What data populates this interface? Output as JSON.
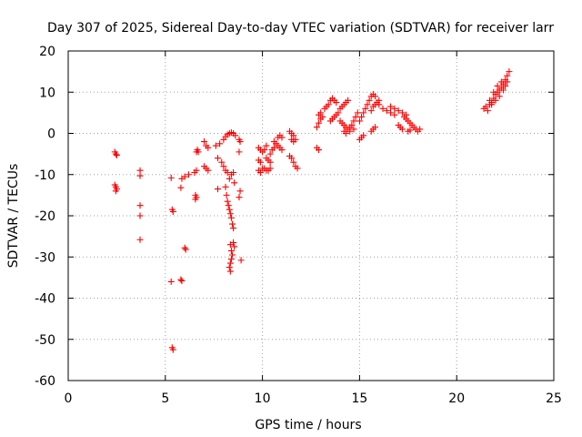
{
  "chart_data": {
    "type": "scatter",
    "title": "Day 307 of 2025, Sidereal Day-to-day VTEC variation (SDTVAR) for receiver larr",
    "xlabel": "GPS time / hours",
    "ylabel": "SDTVAR / TECUs",
    "xlim": [
      0,
      25
    ],
    "ylim": [
      -60,
      20
    ],
    "xticks": [
      0,
      5,
      10,
      15,
      20,
      25
    ],
    "yticks": [
      -60,
      -50,
      -40,
      -30,
      -20,
      -10,
      0,
      10,
      20
    ],
    "xtick_labels": [
      "0",
      "5",
      "10",
      "15",
      "20",
      "25"
    ],
    "ytick_labels": [
      "-60",
      "-50",
      "-40",
      "-30",
      "-20",
      "-10",
      "0",
      "10",
      "20"
    ],
    "grid": true,
    "marker": "+",
    "color": "#ff0000",
    "series": [
      {
        "name": "SDTVAR",
        "points": [
          [
            2.4,
            -4.5
          ],
          [
            2.45,
            -5.0
          ],
          [
            2.5,
            -5.3
          ],
          [
            2.4,
            -12.5
          ],
          [
            2.45,
            -13.0
          ],
          [
            2.5,
            -13.5
          ],
          [
            2.45,
            -14.0
          ],
          [
            3.7,
            -9.0
          ],
          [
            3.7,
            -10.3
          ],
          [
            3.7,
            -17.5
          ],
          [
            3.7,
            -20.0
          ],
          [
            3.7,
            -25.8
          ],
          [
            5.3,
            -10.8
          ],
          [
            5.35,
            -18.5
          ],
          [
            5.4,
            -19.0
          ],
          [
            5.3,
            -36.0
          ],
          [
            5.35,
            -52.0
          ],
          [
            5.4,
            -52.5
          ],
          [
            5.8,
            -13.2
          ],
          [
            5.8,
            -35.5
          ],
          [
            5.85,
            -35.8
          ],
          [
            5.85,
            -11.0
          ],
          [
            6.0,
            -10.5
          ],
          [
            6.2,
            -10.0
          ],
          [
            6.0,
            -27.8
          ],
          [
            6.05,
            -28.2
          ],
          [
            6.5,
            -9.5
          ],
          [
            6.6,
            -9.0
          ],
          [
            6.55,
            -15.0
          ],
          [
            6.6,
            -15.5
          ],
          [
            6.55,
            -16.0
          ],
          [
            6.6,
            -4.5
          ],
          [
            6.65,
            -4.0
          ],
          [
            6.7,
            -4.5
          ],
          [
            7.0,
            -2.0
          ],
          [
            7.1,
            -3.0
          ],
          [
            7.2,
            -3.5
          ],
          [
            7.0,
            -8.0
          ],
          [
            7.1,
            -8.5
          ],
          [
            7.2,
            -9.0
          ],
          [
            7.7,
            -13.5
          ],
          [
            7.7,
            -6.0
          ],
          [
            7.6,
            -3.0
          ],
          [
            7.8,
            -2.5
          ],
          [
            8.0,
            -1.5
          ],
          [
            8.1,
            -0.8
          ],
          [
            8.2,
            -0.3
          ],
          [
            8.3,
            0.0
          ],
          [
            8.4,
            0.2
          ],
          [
            8.5,
            0.0
          ],
          [
            8.6,
            -0.5
          ],
          [
            7.9,
            -7.0
          ],
          [
            8.0,
            -8.0
          ],
          [
            8.1,
            -9.0
          ],
          [
            8.2,
            -9.5
          ],
          [
            8.3,
            -11.0
          ],
          [
            8.4,
            -10.0
          ],
          [
            8.5,
            -9.5
          ],
          [
            8.55,
            -12.0
          ],
          [
            8.1,
            -13.0
          ],
          [
            8.15,
            -15.0
          ],
          [
            8.2,
            -16.5
          ],
          [
            8.25,
            -17.5
          ],
          [
            8.3,
            -18.5
          ],
          [
            8.35,
            -19.5
          ],
          [
            8.4,
            -20.5
          ],
          [
            8.45,
            -22.0
          ],
          [
            8.5,
            -23.0
          ],
          [
            8.35,
            -27.0
          ],
          [
            8.4,
            -28.5
          ],
          [
            8.45,
            -29.5
          ],
          [
            8.4,
            -30.5
          ],
          [
            8.35,
            -31.5
          ],
          [
            8.3,
            -32.5
          ],
          [
            8.35,
            -33.5
          ],
          [
            8.5,
            -26.5
          ],
          [
            8.55,
            -27.5
          ],
          [
            8.8,
            -1.5
          ],
          [
            8.85,
            -2.0
          ],
          [
            8.8,
            -4.5
          ],
          [
            8.85,
            -14.0
          ],
          [
            8.8,
            -15.5
          ],
          [
            8.9,
            -30.8
          ],
          [
            9.8,
            -3.5
          ],
          [
            9.9,
            -4.0
          ],
          [
            9.8,
            -6.5
          ],
          [
            9.9,
            -7.0
          ],
          [
            9.8,
            -9.0
          ],
          [
            9.9,
            -9.5
          ],
          [
            10.0,
            -8.5
          ],
          [
            10.0,
            -4.5
          ],
          [
            10.1,
            -4.0
          ],
          [
            10.2,
            -3.0
          ],
          [
            10.1,
            -8.5
          ],
          [
            10.2,
            -9.0
          ],
          [
            10.3,
            -9.0
          ],
          [
            10.4,
            -8.5
          ],
          [
            10.2,
            -6.0
          ],
          [
            10.3,
            -6.5
          ],
          [
            10.4,
            -7.0
          ],
          [
            10.4,
            -5.0
          ],
          [
            10.5,
            -4.0
          ],
          [
            10.6,
            -3.5
          ],
          [
            10.6,
            -2.0
          ],
          [
            10.7,
            -2.5
          ],
          [
            10.8,
            -3.0
          ],
          [
            10.8,
            -1.0
          ],
          [
            10.9,
            -0.5
          ],
          [
            11.0,
            -1.0
          ],
          [
            10.9,
            -3.5
          ],
          [
            11.0,
            -4.0
          ],
          [
            11.4,
            0.5
          ],
          [
            11.5,
            0.0
          ],
          [
            11.6,
            -0.5
          ],
          [
            11.5,
            -1.5
          ],
          [
            11.6,
            -2.0
          ],
          [
            11.7,
            -1.5
          ],
          [
            11.4,
            -5.5
          ],
          [
            11.5,
            -6.0
          ],
          [
            11.6,
            -7.0
          ],
          [
            11.7,
            -8.0
          ],
          [
            11.8,
            -8.5
          ],
          [
            12.8,
            -3.5
          ],
          [
            12.9,
            -4.0
          ],
          [
            12.8,
            1.5
          ],
          [
            12.9,
            2.5
          ],
          [
            13.0,
            3.5
          ],
          [
            13.1,
            4.0
          ],
          [
            12.9,
            4.5
          ],
          [
            13.0,
            5.0
          ],
          [
            13.2,
            6.0
          ],
          [
            13.3,
            6.5
          ],
          [
            13.4,
            7.0
          ],
          [
            13.5,
            8.0
          ],
          [
            13.6,
            8.5
          ],
          [
            13.7,
            8.0
          ],
          [
            13.8,
            7.5
          ],
          [
            13.5,
            3.0
          ],
          [
            13.6,
            3.5
          ],
          [
            13.7,
            4.0
          ],
          [
            13.8,
            4.5
          ],
          [
            13.9,
            5.0
          ],
          [
            14.0,
            6.0
          ],
          [
            14.1,
            6.5
          ],
          [
            14.2,
            7.0
          ],
          [
            14.3,
            7.5
          ],
          [
            14.4,
            8.0
          ],
          [
            14.0,
            3.0
          ],
          [
            14.1,
            2.5
          ],
          [
            14.2,
            2.0
          ],
          [
            14.3,
            1.5
          ],
          [
            14.4,
            1.0
          ],
          [
            14.5,
            1.5
          ],
          [
            14.6,
            2.0
          ],
          [
            14.7,
            3.0
          ],
          [
            14.8,
            4.0
          ],
          [
            14.9,
            5.0
          ],
          [
            14.2,
            0.5
          ],
          [
            14.3,
            0.0
          ],
          [
            14.5,
            0.5
          ],
          [
            14.7,
            1.0
          ],
          [
            15.0,
            3.0
          ],
          [
            15.1,
            4.0
          ],
          [
            15.2,
            5.0
          ],
          [
            15.3,
            6.0
          ],
          [
            15.4,
            7.0
          ],
          [
            15.5,
            8.0
          ],
          [
            15.6,
            9.0
          ],
          [
            15.7,
            9.5
          ],
          [
            15.8,
            9.0
          ],
          [
            15.6,
            5.5
          ],
          [
            15.7,
            6.5
          ],
          [
            15.8,
            7.0
          ],
          [
            15.9,
            7.5
          ],
          [
            16.0,
            8.0
          ],
          [
            15.0,
            -1.5
          ],
          [
            15.1,
            -1.0
          ],
          [
            15.2,
            -0.5
          ],
          [
            15.6,
            0.5
          ],
          [
            15.7,
            1.0
          ],
          [
            15.8,
            1.5
          ],
          [
            16.0,
            7.0
          ],
          [
            16.2,
            6.0
          ],
          [
            16.4,
            5.5
          ],
          [
            16.6,
            5.0
          ],
          [
            16.8,
            4.5
          ],
          [
            16.6,
            6.5
          ],
          [
            16.8,
            6.0
          ],
          [
            17.0,
            5.5
          ],
          [
            17.2,
            5.0
          ],
          [
            17.4,
            4.5
          ],
          [
            17.0,
            2.0
          ],
          [
            17.1,
            1.5
          ],
          [
            17.2,
            1.0
          ],
          [
            17.3,
            4.0
          ],
          [
            17.4,
            3.5
          ],
          [
            17.5,
            3.0
          ],
          [
            17.6,
            2.5
          ],
          [
            17.7,
            2.0
          ],
          [
            17.8,
            1.5
          ],
          [
            17.9,
            1.0
          ],
          [
            18.0,
            0.5
          ],
          [
            18.1,
            1.0
          ],
          [
            17.5,
            0.5
          ],
          [
            17.6,
            0.8
          ],
          [
            21.4,
            6.0
          ],
          [
            21.5,
            6.5
          ],
          [
            21.6,
            5.5
          ],
          [
            21.7,
            7.0
          ],
          [
            21.8,
            7.5
          ],
          [
            21.9,
            8.5
          ],
          [
            22.0,
            9.5
          ],
          [
            22.1,
            10.0
          ],
          [
            22.2,
            10.5
          ],
          [
            22.3,
            11.0
          ],
          [
            22.4,
            12.0
          ],
          [
            22.5,
            13.0
          ],
          [
            22.6,
            14.0
          ],
          [
            22.7,
            15.0
          ],
          [
            22.6,
            12.5
          ],
          [
            22.4,
            10.5
          ],
          [
            22.2,
            9.0
          ],
          [
            22.0,
            8.0
          ],
          [
            21.8,
            7.0
          ],
          [
            22.5,
            11.5
          ],
          [
            22.3,
            12.5
          ],
          [
            22.1,
            11.5
          ],
          [
            21.9,
            10.0
          ],
          [
            21.7,
            8.0
          ]
        ]
      }
    ]
  }
}
